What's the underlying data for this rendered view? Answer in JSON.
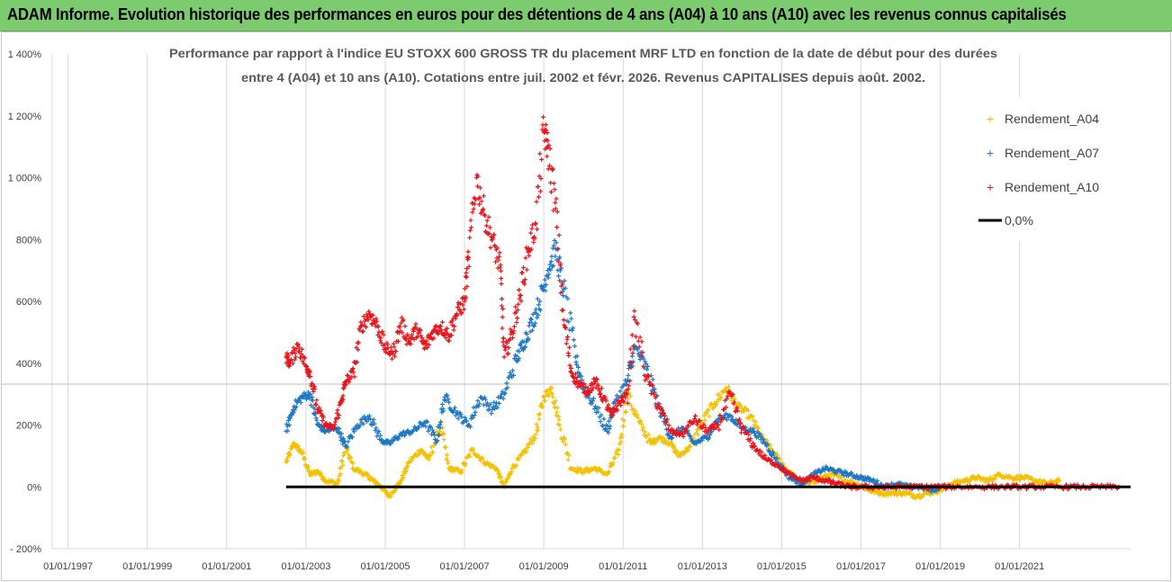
{
  "header": {
    "banner": "ADAM Informe. Evolution historique des performances en euros pour des détentions de 4 ans (A04) à 10 ans (A10) avec les revenus connus capitalisés"
  },
  "colors": {
    "banner_bg": "#7ccb6e",
    "A04": "#f5c000",
    "A07": "#1f77c4",
    "A10": "#e8141c",
    "zero": "#000000",
    "grid": "#d9d9d9"
  },
  "chart_data": {
    "type": "scatter",
    "title_lines": [
      "Performance par rapport à l'indice EU STOXX 600 GROSS TR  du placement MRF LTD en fonction de la date de début pour des durées",
      "entre 4 (A04) et 10 ans (A10).  Cotations entre juil. 2002 et févr. 2026. Revenus CAPITALISES depuis août. 2002."
    ],
    "x_tick_labels": [
      "01/01/1997",
      "01/01/1999",
      "01/01/2001",
      "01/01/2003",
      "01/01/2005",
      "01/01/2007",
      "01/01/2009",
      "01/01/2011",
      "01/01/2013",
      "01/01/2015",
      "01/01/2017",
      "01/01/2019",
      "01/01/2021"
    ],
    "x_range": [
      1996.6,
      2023.8
    ],
    "y_tick_labels": [
      "1 400%",
      "1 200%",
      "1 000%",
      "800%",
      "600%",
      "400%",
      "200%",
      "0%",
      "- 200%"
    ],
    "y_ticks": [
      1400,
      1200,
      1000,
      800,
      600,
      400,
      200,
      0,
      -200
    ],
    "ylim": [
      -200,
      1400
    ],
    "legend_position": "top-right",
    "series": [
      {
        "name": "Rendement_A04",
        "marker": "+",
        "x": [
          2002.5,
          2002.7,
          2002.9,
          2003.1,
          2003.3,
          2003.5,
          2003.8,
          2004.0,
          2004.2,
          2004.5,
          2004.7,
          2004.9,
          2005.1,
          2005.4,
          2005.6,
          2005.9,
          2006.1,
          2006.4,
          2006.6,
          2006.9,
          2007.2,
          2007.5,
          2007.8,
          2008.0,
          2008.2,
          2008.5,
          2008.8,
          2009.0,
          2009.2,
          2009.4,
          2009.7,
          2010.0,
          2010.3,
          2010.6,
          2010.9,
          2011.1,
          2011.4,
          2011.7,
          2011.9,
          2012.2,
          2012.4,
          2012.7,
          2013.0,
          2013.3,
          2013.6,
          2013.9,
          2014.2,
          2014.5,
          2014.8,
          2015.1,
          2015.4,
          2015.7,
          2016.0,
          2016.3,
          2016.6,
          2016.9,
          2017.2,
          2017.5,
          2017.8,
          2018.1,
          2018.4,
          2018.7,
          2019.0,
          2019.3,
          2019.6,
          2019.9,
          2020.2,
          2020.5,
          2020.8,
          2021.1,
          2021.4,
          2021.7,
          2022.0
        ],
        "y": [
          80,
          140,
          110,
          40,
          50,
          20,
          10,
          130,
          60,
          40,
          20,
          0,
          -30,
          20,
          80,
          120,
          90,
          200,
          60,
          50,
          120,
          80,
          60,
          0,
          60,
          110,
          170,
          290,
          320,
          200,
          60,
          50,
          60,
          40,
          120,
          300,
          210,
          140,
          160,
          140,
          100,
          130,
          210,
          270,
          320,
          260,
          230,
          160,
          110,
          60,
          20,
          10,
          30,
          40,
          20,
          10,
          -10,
          -20,
          -20,
          -20,
          -30,
          -20,
          -10,
          10,
          20,
          30,
          20,
          40,
          30,
          30,
          20,
          10,
          20
        ]
      },
      {
        "name": "Rendement_A07",
        "marker": "+",
        "x": [
          2002.5,
          2002.7,
          2002.9,
          2003.1,
          2003.3,
          2003.5,
          2003.8,
          2004.0,
          2004.3,
          2004.6,
          2004.9,
          2005.1,
          2005.4,
          2005.7,
          2006.0,
          2006.3,
          2006.5,
          2006.8,
          2007.1,
          2007.4,
          2007.7,
          2008.0,
          2008.3,
          2008.5,
          2008.7,
          2008.9,
          2009.1,
          2009.3,
          2009.5,
          2009.8,
          2010.0,
          2010.3,
          2010.6,
          2010.8,
          2011.1,
          2011.3,
          2011.6,
          2011.9,
          2012.2,
          2012.5,
          2012.8,
          2013.1,
          2013.4,
          2013.7,
          2014.0,
          2014.3,
          2014.6,
          2014.9,
          2015.2,
          2015.5,
          2015.8,
          2016.1,
          2016.4,
          2016.7,
          2017.0,
          2017.3,
          2017.6,
          2017.9,
          2018.2,
          2018.5,
          2018.8,
          2019.0
        ],
        "y": [
          180,
          260,
          290,
          300,
          200,
          180,
          190,
          130,
          200,
          230,
          150,
          140,
          170,
          180,
          210,
          150,
          290,
          240,
          200,
          290,
          250,
          300,
          410,
          470,
          530,
          600,
          700,
          770,
          640,
          420,
          320,
          260,
          180,
          270,
          340,
          450,
          380,
          260,
          160,
          190,
          140,
          160,
          220,
          230,
          190,
          180,
          140,
          80,
          30,
          10,
          40,
          60,
          50,
          40,
          30,
          20,
          0,
          10,
          0,
          0,
          -10,
          0
        ]
      },
      {
        "name": "Rendement_A10",
        "marker": "+",
        "x": [
          2002.5,
          2002.6,
          2002.8,
          2003.0,
          2003.1,
          2003.3,
          2003.5,
          2003.7,
          2003.9,
          2004.0,
          2004.2,
          2004.4,
          2004.6,
          2004.8,
          2005.0,
          2005.2,
          2005.4,
          2005.6,
          2005.8,
          2006.0,
          2006.2,
          2006.4,
          2006.6,
          2006.8,
          2007.0,
          2007.1,
          2007.3,
          2007.5,
          2007.7,
          2007.9,
          2008.0,
          2008.2,
          2008.4,
          2008.6,
          2008.8,
          2009.0,
          2009.1,
          2009.3,
          2009.5,
          2009.7,
          2009.9,
          2010.1,
          2010.3,
          2010.5,
          2010.7,
          2010.9,
          2011.1,
          2011.3,
          2011.6,
          2011.9,
          2012.2,
          2012.5,
          2012.8,
          2013.1,
          2013.4,
          2013.7,
          2014.0,
          2014.3,
          2014.6,
          2014.9,
          2015.2,
          2015.5,
          2015.8,
          2016.1,
          2016.4,
          2016.7,
          2017.0,
          2017.4,
          2017.8,
          2018.2,
          2018.6,
          2019.0,
          2019.5,
          2020.0,
          2020.5,
          2021.0,
          2021.5,
          2022.0,
          2022.5,
          2023.0,
          2023.5
        ],
        "y": [
          420,
          400,
          460,
          390,
          370,
          250,
          200,
          190,
          280,
          340,
          370,
          520,
          560,
          520,
          450,
          430,
          530,
          470,
          510,
          450,
          500,
          520,
          490,
          560,
          600,
          740,
          1000,
          880,
          800,
          710,
          420,
          500,
          620,
          760,
          850,
          1150,
          1100,
          900,
          540,
          370,
          330,
          310,
          340,
          290,
          230,
          270,
          300,
          540,
          350,
          260,
          180,
          170,
          220,
          180,
          200,
          300,
          190,
          130,
          90,
          70,
          40,
          20,
          30,
          20,
          10,
          0,
          0,
          0,
          0,
          0,
          0,
          0,
          0,
          0,
          0,
          0,
          0,
          0,
          0,
          0,
          0
        ]
      },
      {
        "name": "0,0%",
        "marker": "line",
        "x": [
          2002.5,
          2023.8
        ],
        "y": [
          0,
          0
        ]
      }
    ]
  }
}
